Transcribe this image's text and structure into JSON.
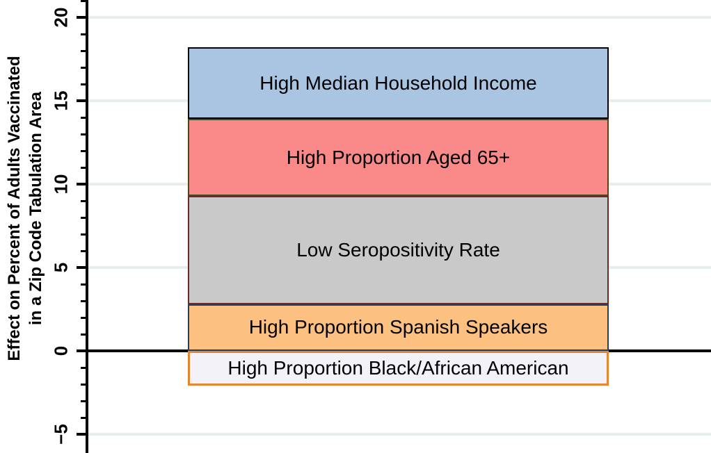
{
  "chart_data": {
    "type": "bar",
    "subtype": "single-stacked-vertical-bar",
    "title": "",
    "xlabel": "",
    "ylabel_lines": [
      "Effect on Percent of Adults Vaccinated",
      "in a Zip Code Tabulation Area"
    ],
    "ylim": [
      -6,
      21
    ],
    "ytick_interval_major": 5,
    "ytick_interval_minor": 1,
    "yticks_major": [
      {
        "value": 20,
        "label": "20"
      },
      {
        "value": 15,
        "label": "15"
      },
      {
        "value": 10,
        "label": "10"
      },
      {
        "value": 5,
        "label": "5"
      },
      {
        "value": 0,
        "label": "0"
      },
      {
        "value": -5,
        "label": "−5"
      }
    ],
    "grid": "major-horizontal",
    "gridline_color": "#e7edef",
    "zero_line_color": "#000000",
    "axis_color": "#000000",
    "legend": "none",
    "segments": [
      {
        "label": "High Median Household Income",
        "start": 13.9,
        "end": 18.2,
        "contribution": 4.3,
        "fill": "#a9c5e2",
        "border": "#000000"
      },
      {
        "label": "High Proportion Aged 65+",
        "start": 9.3,
        "end": 13.9,
        "contribution": 4.6,
        "fill": "#fa8a8a",
        "border": "#454a1e"
      },
      {
        "label": "Low Seropositivity Rate",
        "start": 2.8,
        "end": 9.3,
        "contribution": 6.5,
        "fill": "#c9c9c9",
        "border": "#6f2823"
      },
      {
        "label": "High Proportion Spanish Speakers",
        "start": 0,
        "end": 2.8,
        "contribution": 2.8,
        "fill": "#fcc180",
        "border": "#20406a"
      },
      {
        "label": "High Proportion Black/African American",
        "start": -2.1,
        "end": 0,
        "contribution": -2.1,
        "fill": "#f4f2f9",
        "border": "#e8842e"
      }
    ]
  }
}
